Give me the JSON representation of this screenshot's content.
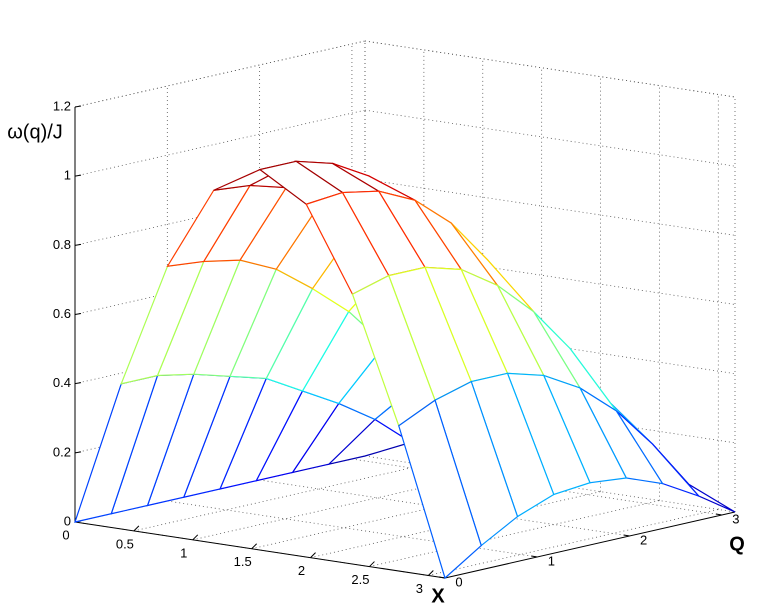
{
  "chart_data": {
    "type": "surface",
    "zlabel": "ω(q)/J",
    "xlabel": "X",
    "ylabel": "Q",
    "x": [
      0,
      0.3927,
      0.7854,
      1.1781,
      1.5708,
      1.9635,
      2.3562,
      2.7489,
      3.1416
    ],
    "y": [
      0,
      0.3927,
      0.7854,
      1.1781,
      1.5708,
      1.9635,
      2.3562,
      2.7489,
      3.1416
    ],
    "z": [
      [
        0,
        0.42,
        0.78,
        1.02,
        1.1,
        1.02,
        0.78,
        0.42,
        0
      ],
      [
        0,
        0.42,
        0.77,
        1.01,
        1.1,
        1.03,
        0.81,
        0.47,
        0.07
      ],
      [
        0,
        0.4,
        0.75,
        0.98,
        1.07,
        1.01,
        0.81,
        0.5,
        0.13
      ],
      [
        0,
        0.37,
        0.7,
        0.92,
        1.01,
        0.96,
        0.78,
        0.5,
        0.17
      ],
      [
        0,
        0.34,
        0.62,
        0.83,
        0.91,
        0.87,
        0.71,
        0.47,
        0.18
      ],
      [
        0,
        0.28,
        0.53,
        0.7,
        0.78,
        0.74,
        0.61,
        0.41,
        0.17
      ],
      [
        0,
        0.22,
        0.41,
        0.55,
        0.61,
        0.58,
        0.48,
        0.32,
        0.13
      ],
      [
        0,
        0.15,
        0.28,
        0.37,
        0.4,
        0.38,
        0.31,
        0.2,
        0.07
      ],
      [
        0,
        0.06,
        0.12,
        0.15,
        0.17,
        0.15,
        0.12,
        0.06,
        0
      ]
    ],
    "xlim": [
      0,
      3.1416
    ],
    "ylim": [
      0,
      3.1416
    ],
    "zlim": [
      0,
      1.2
    ],
    "xticks": [
      0,
      0.5,
      1,
      1.5,
      2,
      2.5,
      3
    ],
    "yticks": [
      0,
      1,
      2,
      3
    ],
    "zticks": [
      0,
      0.2,
      0.4,
      0.6,
      0.8,
      1,
      1.2
    ],
    "grid": true,
    "colormap": "jet"
  }
}
